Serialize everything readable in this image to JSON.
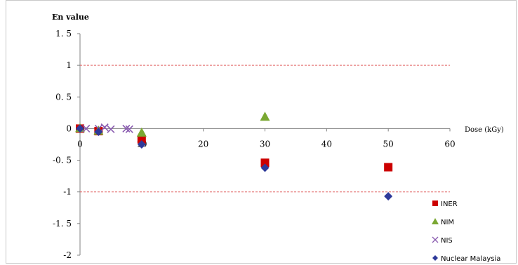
{
  "chart_data": {
    "type": "scatter",
    "title": "",
    "ylabel": "En value",
    "xlabel": "Dose (kGy)",
    "xlim": [
      0,
      60
    ],
    "ylim": [
      -2,
      1.5
    ],
    "xticks": [
      0,
      10,
      20,
      30,
      40,
      50,
      60
    ],
    "yticks": [
      1.5,
      1,
      0.5,
      0,
      -0.5,
      -1,
      -1.5,
      -2
    ],
    "ytick_labels": [
      "1. 5",
      "1",
      "0. 5",
      "0",
      "-0. 5",
      "-1",
      "-1. 5",
      "-2"
    ],
    "xtick_labels": [
      "0",
      "10",
      "20",
      "30",
      "40",
      "50",
      "60"
    ],
    "reference_lines": [
      1,
      -1
    ],
    "legend_position": "right",
    "grid": false,
    "series": [
      {
        "name": "INER",
        "marker": "square",
        "color": "#cc0000",
        "points": [
          [
            0,
            0
          ],
          [
            3,
            -0.04
          ],
          [
            10,
            -0.17
          ],
          [
            30,
            -0.54
          ],
          [
            50,
            -0.61
          ]
        ]
      },
      {
        "name": "NIM",
        "marker": "triangle",
        "color": "#7aa832",
        "points": [
          [
            0,
            0.01
          ],
          [
            3,
            -0.03
          ],
          [
            10,
            -0.06
          ],
          [
            30,
            0.19
          ]
        ]
      },
      {
        "name": "NIS",
        "marker": "cross",
        "color": "#8a5cb0",
        "points": [
          [
            1,
            0
          ],
          [
            3,
            0
          ],
          [
            4,
            0.02
          ],
          [
            5,
            -0.01
          ],
          [
            7.5,
            0
          ],
          [
            8,
            -0.01
          ]
        ]
      },
      {
        "name": "Nuclear Malaysia",
        "marker": "diamond",
        "color": "#2e3a9a",
        "points": [
          [
            0,
            0
          ],
          [
            3,
            -0.05
          ],
          [
            10,
            -0.25
          ],
          [
            30,
            -0.62
          ],
          [
            50,
            -1.07
          ]
        ]
      }
    ]
  }
}
